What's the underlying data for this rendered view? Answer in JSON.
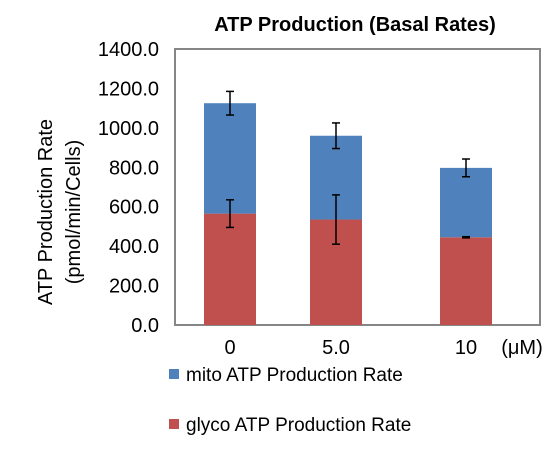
{
  "chart_data": {
    "type": "bar",
    "stacked": true,
    "title": "ATP Production (Basal Rates)",
    "ylabel_line1": "ATP Production Rate",
    "ylabel_line2": "(pmol/min/Cells)",
    "x_unit": "(μM)",
    "categories": [
      "0",
      "5.0",
      "10"
    ],
    "ylim": [
      0,
      1400
    ],
    "yticks": [
      "0.0",
      "200.0",
      "400.0",
      "600.0",
      "800.0",
      "1000.0",
      "1200.0",
      "1400.0"
    ],
    "grid": false,
    "legend_position": "bottom",
    "series": [
      {
        "name": "glyco ATP Production Rate",
        "color": "#c0504d",
        "values": [
          565,
          535,
          445
        ],
        "error": [
          70,
          125,
          3
        ]
      },
      {
        "name": "mito ATP Production Rate",
        "color": "#4f81bd",
        "values": [
          560,
          425,
          352
        ],
        "error": [
          60,
          65,
          45
        ]
      }
    ]
  }
}
